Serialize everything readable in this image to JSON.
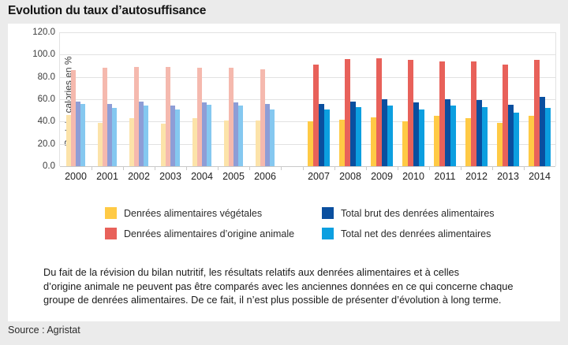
{
  "page": {
    "title": "Evolution du taux d’autosuffisance",
    "source": "Source : Agristat"
  },
  "chart": {
    "y_axis_label": "Part de calories en %",
    "footnote_lines": [
      "Du fait de la révision du bilan nutritif, les résultats relatifs aux denrées alimentaires et à celles",
      "d’origine animale ne peuvent pas être comparés avec les anciennes données en ce qui concerne chaque",
      "groupe de denrées alimentaires. De ce fait, il n’est plus possible de présenter d’évolution à long terme."
    ]
  },
  "chart_data": {
    "type": "bar",
    "title": "Evolution du taux d’autosuffisance",
    "xlabel": "",
    "ylabel": "Part de calories en %",
    "ylim": [
      0,
      120
    ],
    "y_ticks": [
      "120.0",
      "100.0",
      "80.0",
      "60.0",
      "40.0",
      "20.0",
      "0.0"
    ],
    "grid": true,
    "legend_position": "bottom",
    "categories": [
      "2000",
      "2001",
      "2002",
      "2003",
      "2004",
      "2005",
      "2006",
      "2007",
      "2008",
      "2009",
      "2010",
      "2011",
      "2012",
      "2013",
      "2014"
    ],
    "faded_years": [
      "2000",
      "2001",
      "2002",
      "2003",
      "2004",
      "2005",
      "2006"
    ],
    "era_gap_after": "2006",
    "series": [
      {
        "name": "Denrées alimentaires végétales",
        "color": "#ffca45",
        "color_faded": "#fce3a9",
        "values": [
          46,
          39,
          43,
          38,
          43,
          41,
          41,
          40,
          42,
          44,
          40,
          45,
          43,
          39,
          45
        ]
      },
      {
        "name": "Denrées alimentaires d’origine animale",
        "color": "#e8615a",
        "color_faded": "#f5b9ae",
        "values": [
          86,
          88,
          89,
          89,
          88,
          88,
          87,
          91,
          96,
          97,
          95,
          94,
          94,
          91,
          95
        ]
      },
      {
        "name": "Total brut des denrées alimentaires",
        "color": "#0a4f9f",
        "color_faded": "#8e9dd6",
        "values": [
          58,
          56,
          58,
          54,
          57,
          57,
          56,
          56,
          58,
          60,
          57,
          60,
          59,
          55,
          62
        ]
      },
      {
        "name": "Total net des denrées alimentaires",
        "color": "#0c9fe0",
        "color_faded": "#85c8f0",
        "values": [
          56,
          52,
          54,
          51,
          55,
          54,
          51,
          51,
          53,
          54,
          51,
          54,
          53,
          48,
          52
        ]
      }
    ],
    "legend_columns": [
      [
        0,
        1
      ],
      [
        2,
        3
      ]
    ]
  }
}
